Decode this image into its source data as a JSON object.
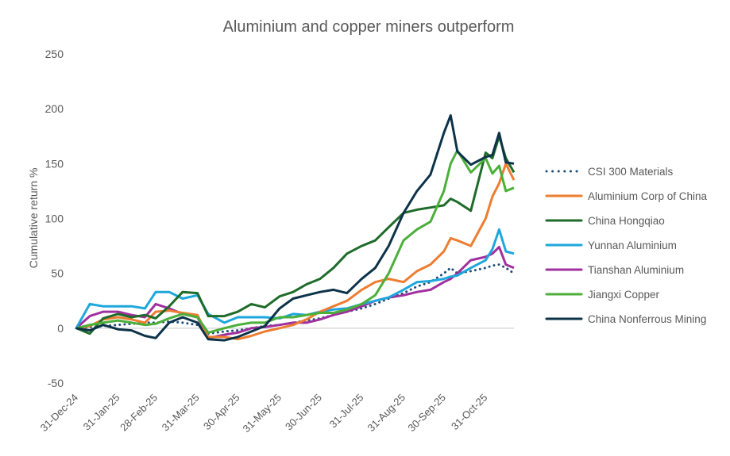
{
  "chart_data": {
    "type": "line",
    "title": "Aluminium and copper miners outperform",
    "xlabel": "",
    "ylabel": "Cumulative return %",
    "ylim": [
      -50,
      250
    ],
    "yticks": [
      -50,
      0,
      50,
      100,
      150,
      200,
      250
    ],
    "xlim": [
      "2024-12-31",
      "2025-11-21"
    ],
    "xtick_dates": [
      "2024-12-31",
      "2025-01-31",
      "2025-02-28",
      "2025-03-31",
      "2025-04-30",
      "2025-05-31",
      "2025-06-30",
      "2025-07-31",
      "2025-08-31",
      "2025-09-30",
      "2025-10-31"
    ],
    "xtick_labels": [
      "31-Dec-24",
      "31-Jan-25",
      "28-Feb-25",
      "31-Mar-25",
      "30-Apr-25",
      "31-May-25",
      "30-Jun-25",
      "31-Jul-25",
      "31-Aug-25",
      "30-Sep-25",
      "31-Oct-25"
    ],
    "grid": "zero line only",
    "legend_placement": "right",
    "x": [
      "2024-12-31",
      "2025-01-10",
      "2025-01-20",
      "2025-01-31",
      "2025-02-10",
      "2025-02-20",
      "2025-02-28",
      "2025-03-10",
      "2025-03-20",
      "2025-03-31",
      "2025-04-08",
      "2025-04-20",
      "2025-04-30",
      "2025-05-10",
      "2025-05-20",
      "2025-05-31",
      "2025-06-10",
      "2025-06-20",
      "2025-06-30",
      "2025-07-10",
      "2025-07-20",
      "2025-07-31",
      "2025-08-10",
      "2025-08-20",
      "2025-08-31",
      "2025-09-10",
      "2025-09-20",
      "2025-09-30",
      "2025-10-05",
      "2025-10-10",
      "2025-10-20",
      "2025-10-31",
      "2025-11-05",
      "2025-11-10",
      "2025-11-15",
      "2025-11-21"
    ],
    "series": [
      {
        "name": "CSI 300 Materials",
        "color": "#1f4e79",
        "dash": "dotted",
        "values": [
          0,
          1,
          2,
          3,
          4,
          5,
          5,
          6,
          5,
          3,
          -5,
          -3,
          -2,
          0,
          2,
          3,
          5,
          7,
          9,
          12,
          15,
          18,
          22,
          27,
          32,
          38,
          42,
          50,
          55,
          50,
          52,
          55,
          57,
          58,
          55,
          50
        ]
      },
      {
        "name": "Aluminium Corp of China",
        "color": "#ed7d31",
        "values": [
          0,
          2,
          8,
          10,
          8,
          5,
          15,
          16,
          14,
          12,
          -8,
          -8,
          -10,
          -7,
          -3,
          0,
          3,
          8,
          15,
          20,
          25,
          35,
          42,
          45,
          42,
          52,
          58,
          70,
          82,
          80,
          75,
          100,
          120,
          132,
          150,
          135
        ]
      },
      {
        "name": "China Hongqiao",
        "color": "#1e6b2a",
        "values": [
          0,
          -5,
          9,
          13,
          10,
          12,
          9,
          20,
          33,
          32,
          11,
          11,
          15,
          22,
          19,
          29,
          33,
          40,
          45,
          55,
          68,
          75,
          80,
          92,
          105,
          108,
          110,
          112,
          118,
          115,
          107,
          160,
          155,
          175,
          155,
          142
        ]
      },
      {
        "name": "Yunnan Aluminium",
        "color": "#1ea7dc",
        "values": [
          0,
          22,
          20,
          20,
          20,
          18,
          33,
          33,
          27,
          30,
          13,
          5,
          10,
          10,
          10,
          9,
          13,
          12,
          15,
          17,
          18,
          22,
          25,
          28,
          35,
          42,
          43,
          45,
          47,
          48,
          55,
          62,
          72,
          90,
          70,
          68
        ]
      },
      {
        "name": "Tianshan Aluminium",
        "color": "#a0309e",
        "values": [
          0,
          11,
          15,
          15,
          12,
          10,
          22,
          18,
          13,
          10,
          -9,
          -6,
          -4,
          0,
          1,
          3,
          5,
          5,
          8,
          12,
          15,
          20,
          25,
          28,
          30,
          33,
          35,
          42,
          45,
          50,
          62,
          65,
          68,
          74,
          58,
          55
        ]
      },
      {
        "name": "Jiangxi Copper",
        "color": "#4caf3a",
        "values": [
          0,
          3,
          5,
          7,
          5,
          3,
          4,
          9,
          13,
          10,
          -4,
          0,
          3,
          5,
          5,
          10,
          10,
          12,
          14,
          14,
          17,
          22,
          30,
          50,
          80,
          90,
          97,
          125,
          150,
          162,
          142,
          155,
          141,
          148,
          125,
          128
        ]
      },
      {
        "name": "China Nonferrous Mining",
        "color": "#0d3349",
        "values": [
          0,
          -2,
          3,
          -1,
          -2,
          -7,
          -9,
          5,
          10,
          5,
          -10,
          -11,
          -8,
          -3,
          2,
          18,
          27,
          30,
          33,
          35,
          32,
          45,
          55,
          75,
          105,
          125,
          140,
          178,
          194,
          161,
          149,
          156,
          158,
          178,
          151,
          150
        ]
      }
    ]
  }
}
